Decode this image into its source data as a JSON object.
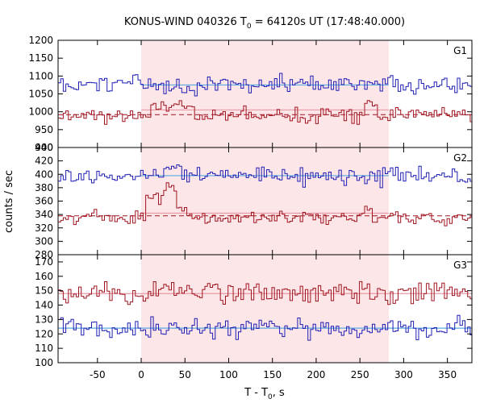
{
  "chart_data": {
    "type": "line",
    "title": {
      "prefix": "KONUS-WIND 040326 T",
      "subscript": "0",
      "suffix": " = 64120s UT (17:48:40.000)"
    },
    "xlabel": {
      "prefix": "T - T",
      "subscript": "0",
      "suffix": ", s"
    },
    "ylabel": "counts / sec",
    "xlim": [
      -95,
      378
    ],
    "xticks": [
      -50,
      0,
      50,
      100,
      150,
      200,
      250,
      300,
      350
    ],
    "grid": false,
    "highlight_interval": [
      0,
      283
    ],
    "bin_width_s": 2.944,
    "colors": {
      "highlight": "#fde6e8",
      "blue": "#1f1fb4",
      "red": "#a01420",
      "blue_fit": "#5aa8e0",
      "red_fit": "#e89aa6",
      "red_background": "#a01420"
    },
    "panels": [
      {
        "label": "G1",
        "ylim": [
          900,
          1200
        ],
        "yticks": [
          900,
          950,
          1000,
          1050,
          1100,
          1150,
          1200
        ],
        "series": [
          {
            "color": "blue",
            "background": 1075,
            "noise": 22,
            "pulses": []
          },
          {
            "color": "red",
            "background": 990,
            "noise": 18,
            "pulses": [
              {
                "t0": 10,
                "t1": 60,
                "amp": 28
              },
              {
                "t0": 255,
                "t1": 270,
                "amp": 30
              }
            ]
          }
        ],
        "fit_segments": [
          {
            "color": "blue_fit",
            "x0": 0,
            "x1": 283,
            "y": 1075
          },
          {
            "color": "red_fit",
            "x0": 0,
            "x1": 283,
            "y": 1005
          }
        ],
        "background_lines": [
          {
            "color": "red_background",
            "x0": -95,
            "x1": 378,
            "y": 992,
            "dashed": true
          }
        ]
      },
      {
        "label": "G2",
        "ylim": [
          280,
          440
        ],
        "yticks": [
          280,
          300,
          320,
          340,
          360,
          380,
          400,
          420,
          440
        ],
        "series": [
          {
            "color": "blue",
            "background": 398,
            "noise": 10,
            "pulses": [
              {
                "t0": 25,
                "t1": 45,
                "amp": 15
              }
            ]
          },
          {
            "color": "red",
            "background": 335,
            "noise": 8,
            "pulses": [
              {
                "t0": 5,
                "t1": 25,
                "amp": 30
              },
              {
                "t0": 25,
                "t1": 40,
                "amp": 42
              },
              {
                "t0": 40,
                "t1": 52,
                "amp": 20
              },
              {
                "t0": 255,
                "t1": 265,
                "amp": 15
              }
            ]
          }
        ],
        "fit_segments": [
          {
            "color": "blue_fit",
            "x0": 0,
            "x1": 283,
            "y": 398
          },
          {
            "color": "red_fit",
            "x0": 0,
            "x1": 283,
            "y": 342
          }
        ],
        "background_lines": [
          {
            "color": "red_background",
            "x0": -95,
            "x1": 378,
            "y": 338,
            "dashed": true
          }
        ]
      },
      {
        "label": "G3",
        "ylim": [
          100,
          175
        ],
        "yticks": [
          100,
          110,
          120,
          130,
          140,
          150,
          160,
          170
        ],
        "series": [
          {
            "color": "red",
            "background": 149,
            "noise": 7,
            "pulses": []
          },
          {
            "color": "blue",
            "background": 124,
            "noise": 6,
            "pulses": []
          }
        ],
        "fit_segments": [
          {
            "color": "red_fit",
            "x0": -95,
            "x1": 378,
            "y": 148
          },
          {
            "color": "blue_fit",
            "x0": -95,
            "x1": 378,
            "y": 124
          }
        ],
        "background_lines": []
      }
    ]
  }
}
